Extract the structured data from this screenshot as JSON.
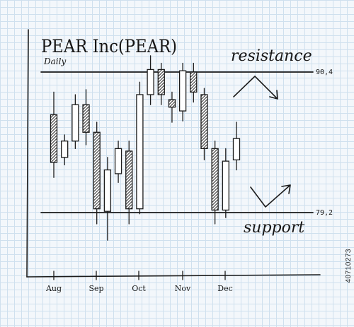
{
  "watermark_id": "40710273",
  "chart_data": {
    "type": "candlestick",
    "title": "PEAR Inc(PEAR)",
    "subtitle": "Daily",
    "x_labels": [
      "Aug",
      "Sep",
      "Oct",
      "Nov",
      "Dec"
    ],
    "ylim": [
      73,
      96
    ],
    "resistance": {
      "label": "resistance",
      "value": 90.4,
      "value_label": "90,4"
    },
    "support": {
      "label": "support",
      "value": 79.2,
      "value_label": "79,2"
    },
    "candles": [
      {
        "o": 87.0,
        "c": 83.2,
        "h": 88.8,
        "l": 82.0,
        "dir": "down"
      },
      {
        "o": 83.6,
        "c": 84.9,
        "h": 85.4,
        "l": 83.0,
        "dir": "up"
      },
      {
        "o": 84.9,
        "c": 87.8,
        "h": 88.6,
        "l": 84.3,
        "dir": "up"
      },
      {
        "o": 87.8,
        "c": 85.6,
        "h": 89.0,
        "l": 84.6,
        "dir": "down"
      },
      {
        "o": 85.6,
        "c": 79.5,
        "h": 86.4,
        "l": 78.3,
        "dir": "down"
      },
      {
        "o": 79.3,
        "c": 82.6,
        "h": 83.6,
        "l": 77.0,
        "dir": "up"
      },
      {
        "o": 82.3,
        "c": 84.3,
        "h": 84.9,
        "l": 81.6,
        "dir": "up"
      },
      {
        "o": 84.1,
        "c": 79.5,
        "h": 84.9,
        "l": 78.3,
        "dir": "down"
      },
      {
        "o": 79.5,
        "c": 88.6,
        "h": 89.6,
        "l": 79.1,
        "dir": "up"
      },
      {
        "o": 88.6,
        "c": 90.6,
        "h": 91.7,
        "l": 87.8,
        "dir": "up"
      },
      {
        "o": 90.6,
        "c": 88.6,
        "h": 91.1,
        "l": 87.8,
        "dir": "down"
      },
      {
        "o": 88.2,
        "c": 87.6,
        "h": 88.8,
        "l": 86.4,
        "dir": "down"
      },
      {
        "o": 87.3,
        "c": 90.5,
        "h": 91.1,
        "l": 86.5,
        "dir": "up"
      },
      {
        "o": 90.4,
        "c": 88.8,
        "h": 91.1,
        "l": 88.0,
        "dir": "down"
      },
      {
        "o": 88.6,
        "c": 84.3,
        "h": 89.1,
        "l": 83.4,
        "dir": "down"
      },
      {
        "o": 84.3,
        "c": 79.4,
        "h": 84.9,
        "l": 78.3,
        "dir": "down"
      },
      {
        "o": 79.4,
        "c": 83.3,
        "h": 84.3,
        "l": 78.8,
        "dir": "up"
      },
      {
        "o": 83.4,
        "c": 85.1,
        "h": 86.4,
        "l": 82.6,
        "dir": "up"
      }
    ]
  }
}
